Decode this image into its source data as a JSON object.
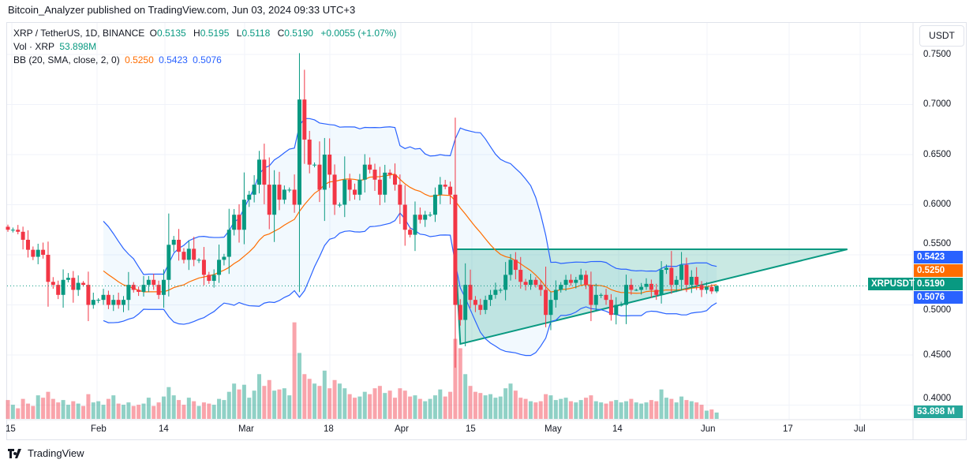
{
  "publisher": "Bitcoin_Analyzer published on TradingView.com, Jun 03, 2024 09:33 UTC+3",
  "legend": {
    "symbol": "XRP / TetherUS, 1D, BINANCE",
    "open_label": "O",
    "open": "0.5135",
    "high_label": "H",
    "high": "0.5195",
    "low_label": "L",
    "low": "0.5118",
    "close_label": "C",
    "close": "0.5190",
    "change": "+0.0055 (+1.07%)",
    "vol_label": "Vol · XRP",
    "vol_value": "53.898M",
    "bb_label": "BB (20, SMA, close, 2, 0)",
    "bb_basis": "0.5250",
    "bb_upper": "0.5423",
    "bb_lower": "0.5076"
  },
  "price_axis": {
    "currency": "USDT",
    "ticks": [
      "0.7500",
      "0.7000",
      "0.6500",
      "0.6000",
      "0.5500",
      "0.5000",
      "0.4500",
      "0.4000"
    ],
    "badges": {
      "bb_upper": "0.5423",
      "bb_basis": "0.5250",
      "last": "0.5190",
      "bb_lower": "0.5076",
      "symbol": "XRPUSDT",
      "volume": "53.898 M"
    }
  },
  "time_axis": {
    "ticks": [
      "15",
      "Feb",
      "14",
      "Mar",
      "18",
      "Apr",
      "15",
      "May",
      "14",
      "Jun",
      "17",
      "Jul"
    ]
  },
  "footer": {
    "brand": "TradingView"
  },
  "colors": {
    "up": "#089981",
    "down": "#f23645",
    "bb_band": "#2962ff",
    "bb_basis": "#ff6d00",
    "triangle": "#089981"
  },
  "chart_data": {
    "type": "candlestick",
    "start_date": "2024-01-14",
    "interval": "1D",
    "last_ohlc": {
      "open": 0.5135,
      "high": 0.5195,
      "low": 0.5118,
      "close": 0.519
    },
    "closes": [
      0.575,
      0.575,
      0.573,
      0.565,
      0.555,
      0.548,
      0.555,
      0.55,
      0.523,
      0.52,
      0.51,
      0.525,
      0.527,
      0.515,
      0.522,
      0.52,
      0.5,
      0.505,
      0.505,
      0.51,
      0.5,
      0.505,
      0.5,
      0.505,
      0.52,
      0.515,
      0.513,
      0.52,
      0.525,
      0.52,
      0.51,
      0.525,
      0.56,
      0.565,
      0.553,
      0.545,
      0.556,
      0.545,
      0.545,
      0.53,
      0.524,
      0.53,
      0.545,
      0.548,
      0.575,
      0.59,
      0.575,
      0.605,
      0.61,
      0.62,
      0.645,
      0.62,
      0.59,
      0.62,
      0.605,
      0.615,
      0.615,
      0.6,
      0.705,
      0.665,
      0.64,
      0.64,
      0.615,
      0.65,
      0.63,
      0.6,
      0.6,
      0.625,
      0.615,
      0.61,
      0.625,
      0.64,
      0.635,
      0.625,
      0.61,
      0.632,
      0.63,
      0.62,
      0.6,
      0.575,
      0.57,
      0.59,
      0.585,
      0.59,
      0.59,
      0.61,
      0.62,
      0.618,
      0.61,
      0.5,
      0.485,
      0.52,
      0.505,
      0.5,
      0.495,
      0.505,
      0.51,
      0.515,
      0.515,
      0.53,
      0.545,
      0.535,
      0.523,
      0.52,
      0.525,
      0.52,
      0.515,
      0.49,
      0.505,
      0.515,
      0.52,
      0.525,
      0.522,
      0.525,
      0.53,
      0.52,
      0.5,
      0.51,
      0.51,
      0.505,
      0.49,
      0.5,
      0.5,
      0.52,
      0.515,
      0.515,
      0.518,
      0.521,
      0.515,
      0.51,
      0.535,
      0.537,
      0.52,
      0.525,
      0.54,
      0.52,
      0.528,
      0.52,
      0.515,
      0.518,
      0.5135,
      0.519
    ],
    "volumes_millions": [
      160,
      120,
      90,
      170,
      130,
      110,
      200,
      180,
      230,
      170,
      140,
      160,
      120,
      150,
      130,
      110,
      210,
      140,
      150,
      120,
      170,
      200,
      130,
      120,
      140,
      110,
      120,
      130,
      180,
      110,
      140,
      190,
      270,
      200,
      160,
      120,
      180,
      150,
      110,
      140,
      130,
      120,
      170,
      160,
      230,
      300,
      250,
      290,
      180,
      240,
      380,
      280,
      330,
      240,
      250,
      260,
      200,
      820,
      560,
      380,
      340,
      300,
      280,
      410,
      260,
      330,
      300,
      260,
      210,
      180,
      190,
      230,
      210,
      260,
      280,
      220,
      240,
      180,
      260,
      240,
      190,
      200,
      170,
      150,
      170,
      200,
      250,
      190,
      230,
      680,
      600,
      380,
      280,
      230,
      220,
      200,
      210,
      180,
      190,
      260,
      300,
      240,
      180,
      170,
      150,
      140,
      150,
      210,
      200,
      160,
      170,
      180,
      150,
      140,
      160,
      180,
      200,
      150,
      140,
      130,
      150,
      160,
      140,
      150,
      170,
      140,
      130,
      140,
      160,
      150,
      250,
      180,
      170,
      140,
      190,
      160,
      150,
      140,
      120,
      70,
      80,
      53.898
    ],
    "indicator": {
      "name": "BB",
      "period": 20,
      "stddev": 2
    },
    "triangle": {
      "points": [
        {
          "date": "2024-04-12",
          "price": 0.5555
        },
        {
          "date": "2024-06-29",
          "price": 0.5555
        },
        {
          "date": "2024-04-13",
          "price": 0.461
        }
      ]
    },
    "ylim": [
      0.38,
      0.76
    ]
  }
}
